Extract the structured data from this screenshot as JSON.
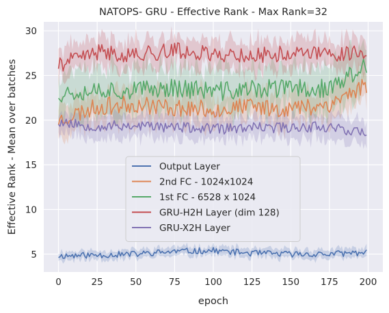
{
  "chart_data": {
    "type": "line",
    "title": "NATOPS- GRU - Effective Rank - Max Rank=32",
    "xlabel": "epoch",
    "ylabel": "Effective Rank - Mean over batches",
    "xlim": [
      -9.5,
      209.5
    ],
    "ylim": [
      3,
      31
    ],
    "xticks": [
      0,
      25,
      50,
      75,
      100,
      125,
      150,
      175,
      200
    ],
    "yticks": [
      5,
      10,
      15,
      20,
      25,
      30
    ],
    "grid": true,
    "legend_position": "center",
    "x_start": 0,
    "x_end": 199,
    "series": [
      {
        "name": "Output Layer",
        "color": "#4c72b0",
        "mean": 5.0,
        "amplitude": 0.35,
        "band": 0.5,
        "trend": 0.5,
        "seed": 11,
        "x": [
          0,
          25,
          50,
          75,
          100,
          125,
          150,
          175,
          199
        ],
        "values": [
          4.8,
          4.9,
          5.0,
          5.3,
          5.4,
          5.1,
          5.0,
          5.0,
          5.2
        ]
      },
      {
        "name": "2nd FC - 1024x1024",
        "color": "#dd8452",
        "mean": 21.5,
        "amplitude": 1.0,
        "band": 1.8,
        "trend": 0.8,
        "seed": 23,
        "x": [
          0,
          25,
          50,
          75,
          100,
          125,
          150,
          175,
          199
        ],
        "values": [
          20.0,
          21.5,
          21.8,
          21.4,
          21.2,
          21.5,
          21.3,
          21.8,
          24.0
        ]
      },
      {
        "name": "1st FC - 6528 x 1024",
        "color": "#55a868",
        "mean": 23.5,
        "amplitude": 1.1,
        "band": 2.5,
        "trend": -0.3,
        "seed": 37,
        "x": [
          0,
          25,
          50,
          75,
          100,
          125,
          150,
          175,
          199
        ],
        "values": [
          23.0,
          23.5,
          23.3,
          23.7,
          23.2,
          23.4,
          23.6,
          23.5,
          26.0
        ]
      },
      {
        "name": "GRU-H2H Layer (dim 128)",
        "color": "#c44e52",
        "mean": 27.5,
        "amplitude": 0.9,
        "band": 1.6,
        "trend": 0.0,
        "seed": 41,
        "x": [
          0,
          25,
          50,
          75,
          100,
          125,
          150,
          175,
          199
        ],
        "values": [
          26.2,
          27.6,
          27.3,
          27.8,
          27.4,
          27.2,
          27.5,
          27.4,
          27.7
        ]
      },
      {
        "name": "GRU-X2H Layer",
        "color": "#8172b3",
        "mean": 19.2,
        "amplitude": 0.6,
        "band": 1.3,
        "trend": -0.2,
        "seed": 53,
        "x": [
          0,
          25,
          50,
          75,
          100,
          125,
          150,
          175,
          199
        ],
        "values": [
          19.8,
          19.3,
          19.4,
          19.2,
          19.0,
          19.1,
          19.2,
          19.3,
          18.5
        ]
      }
    ]
  }
}
